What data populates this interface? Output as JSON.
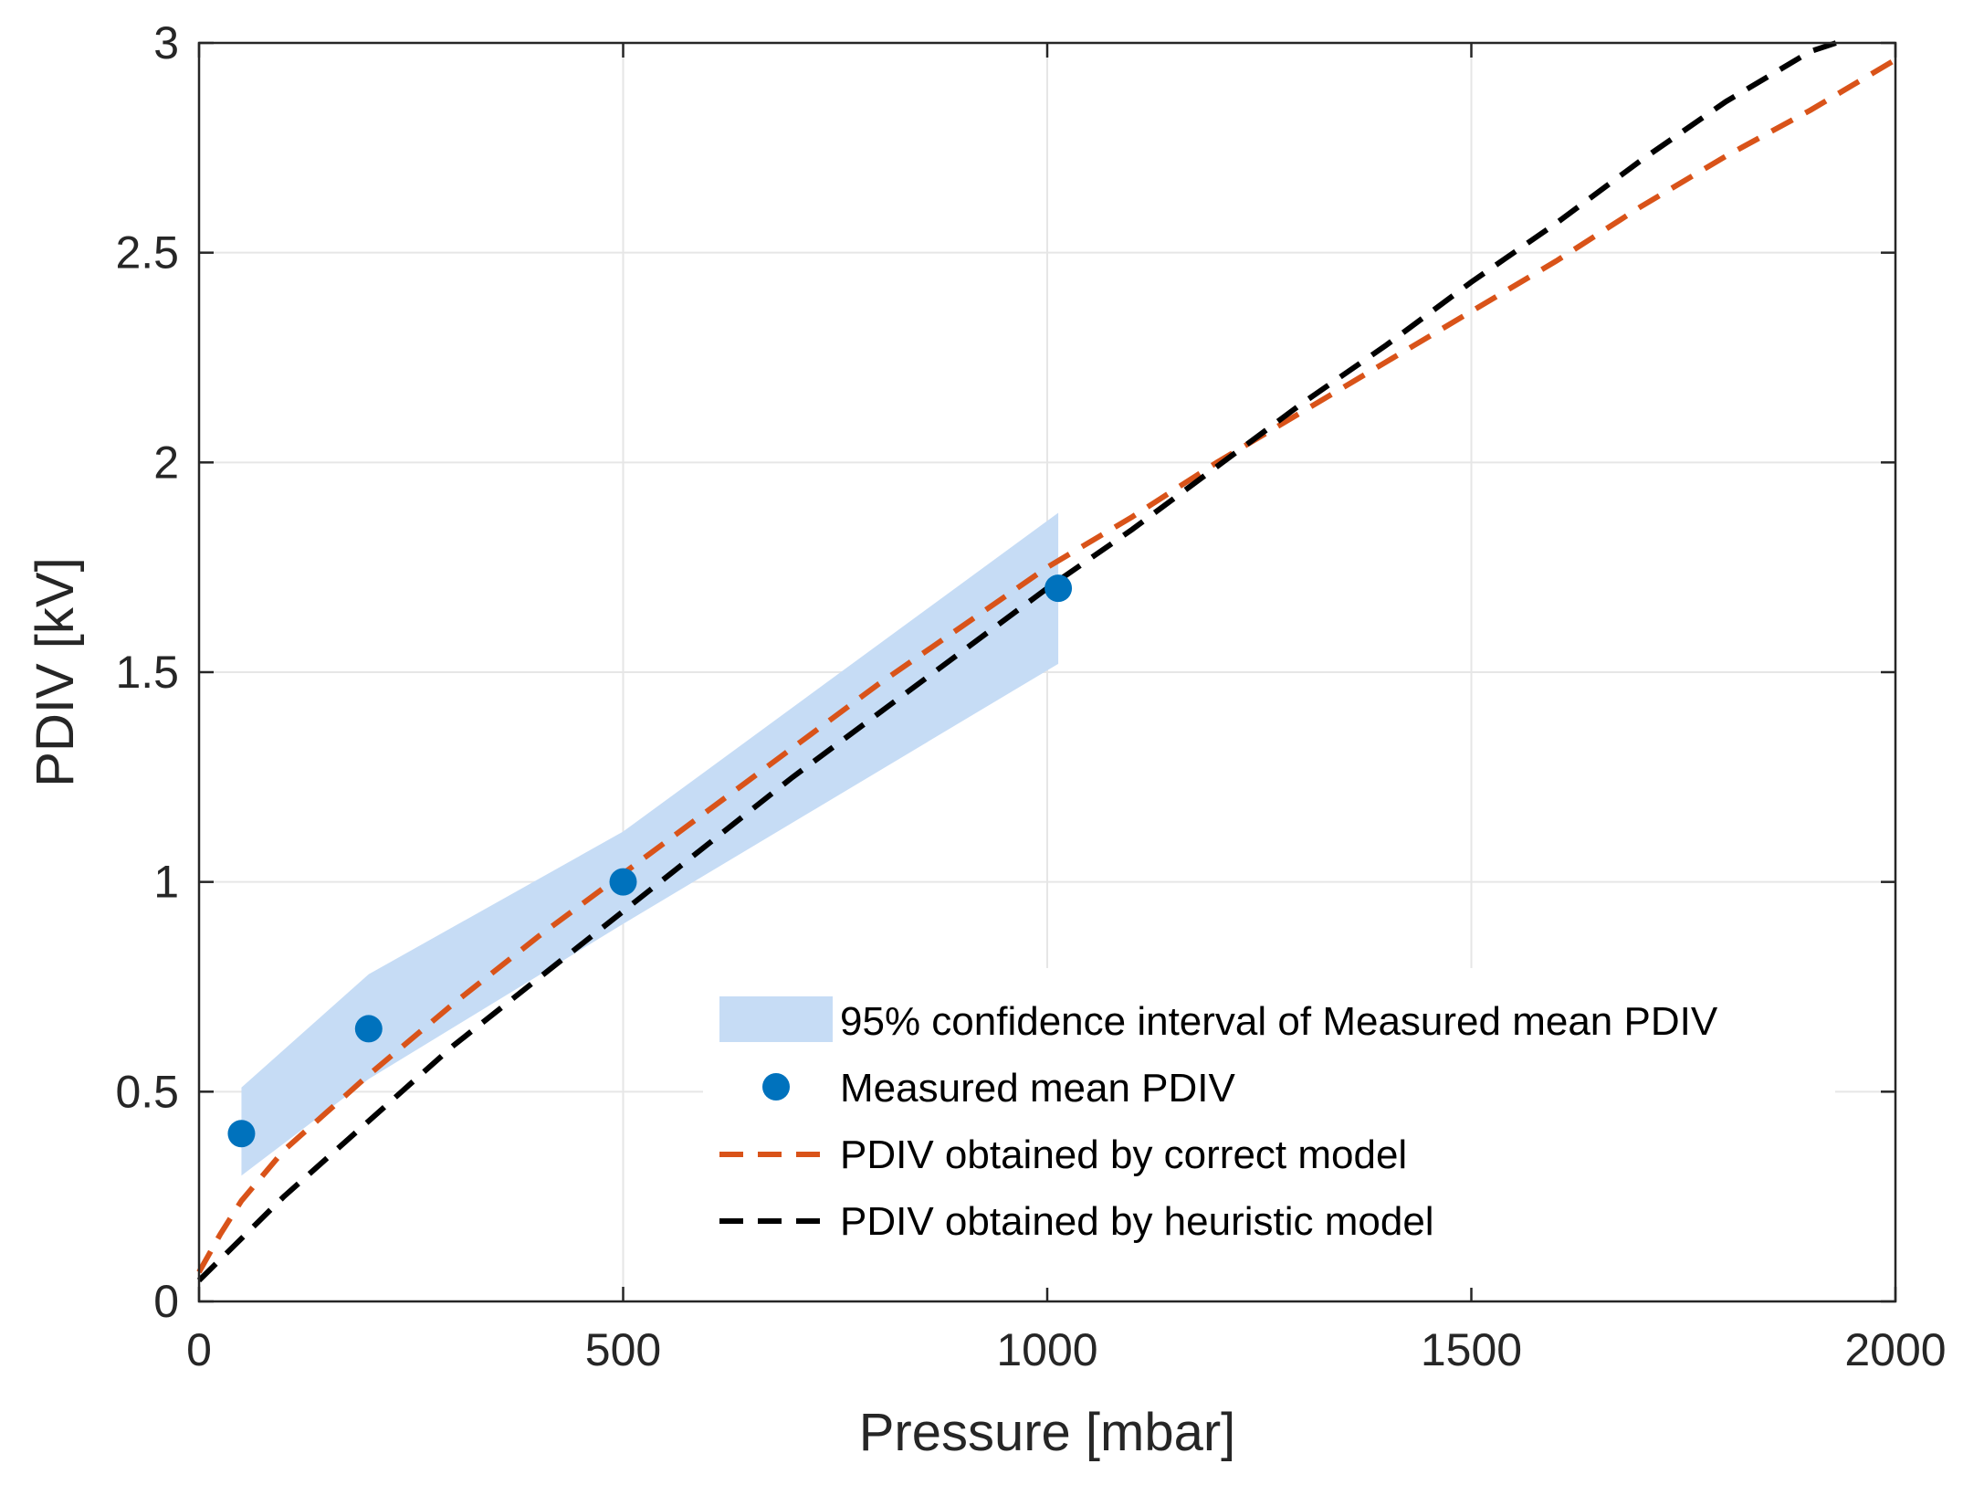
{
  "chart_data": {
    "type": "line",
    "title": "",
    "xlabel": "Pressure [mbar]",
    "ylabel": "PDIV [kV]",
    "xlim": [
      0,
      2000
    ],
    "ylim": [
      0,
      3
    ],
    "grid": true,
    "legend_position": "bottom-right",
    "xticks": [
      0,
      500,
      1000,
      1500,
      2000
    ],
    "xtick_labels": [
      "0",
      "500",
      "1000",
      "1500",
      "2000"
    ],
    "yticks": [
      0,
      0.5,
      1,
      1.5,
      2,
      2.5,
      3
    ],
    "ytick_labels": [
      "0",
      "0.5",
      "1",
      "1.5",
      "2",
      "2.5",
      "3"
    ],
    "series": [
      {
        "name": "95% confidence interval of Measured mean PDIV",
        "kind": "band",
        "color": "#c6dcf5",
        "x": [
          50,
          200,
          500,
          1013
        ],
        "lower": [
          0.3,
          0.53,
          0.9,
          1.52
        ],
        "upper": [
          0.51,
          0.78,
          1.12,
          1.88
        ]
      },
      {
        "name": "Measured mean PDIV",
        "kind": "scatter",
        "color": "#0072bd",
        "x": [
          50,
          200,
          500,
          1013
        ],
        "y": [
          0.4,
          0.65,
          1.0,
          1.7
        ]
      },
      {
        "name": "PDIV obtained by correct model",
        "kind": "dashed-line",
        "color": "#d95319",
        "x": [
          0,
          25,
          50,
          100,
          150,
          200,
          300,
          400,
          500,
          600,
          700,
          800,
          900,
          1000,
          1100,
          1200,
          1300,
          1400,
          1500,
          1600,
          1700,
          1800,
          1900,
          2000
        ],
        "y": [
          0.07,
          0.16,
          0.24,
          0.36,
          0.45,
          0.54,
          0.71,
          0.87,
          1.02,
          1.17,
          1.32,
          1.47,
          1.61,
          1.75,
          1.87,
          2.0,
          2.12,
          2.24,
          2.36,
          2.48,
          2.61,
          2.73,
          2.84,
          2.96
        ]
      },
      {
        "name": "PDIV obtained by heuristic model",
        "kind": "dashed-line",
        "color": "#000000",
        "x": [
          0,
          25,
          50,
          100,
          150,
          200,
          300,
          400,
          500,
          600,
          700,
          800,
          900,
          1000,
          1100,
          1200,
          1300,
          1400,
          1500,
          1600,
          1700,
          1800,
          1900,
          1930
        ],
        "y": [
          0.05,
          0.1,
          0.15,
          0.25,
          0.34,
          0.43,
          0.61,
          0.77,
          0.93,
          1.09,
          1.25,
          1.4,
          1.55,
          1.7,
          1.84,
          1.99,
          2.14,
          2.28,
          2.43,
          2.57,
          2.72,
          2.86,
          2.98,
          3.0
        ]
      }
    ]
  }
}
